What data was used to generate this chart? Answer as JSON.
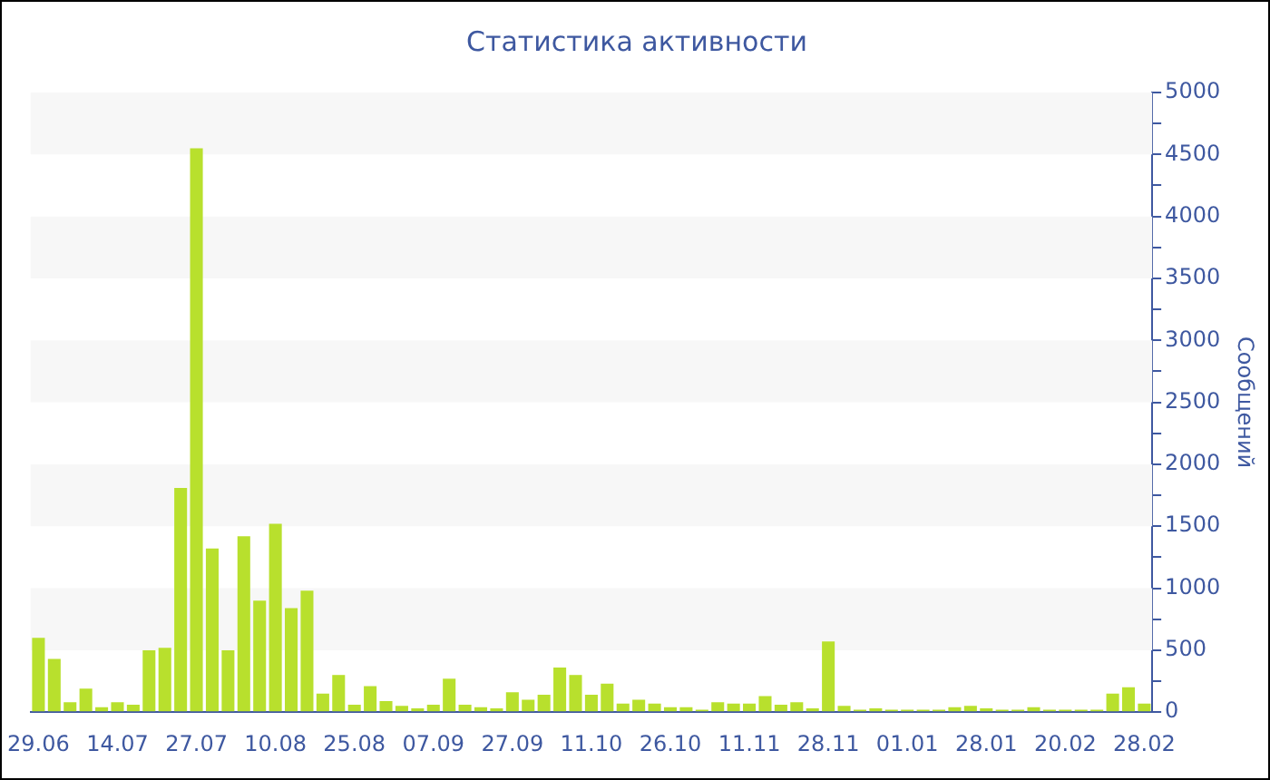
{
  "chart_data": {
    "type": "bar",
    "title": "Статистика активности",
    "ylabel": "Сообщений",
    "categories": [
      "29.06",
      null,
      null,
      null,
      null,
      "14.07",
      null,
      null,
      null,
      null,
      "27.07",
      null,
      null,
      null,
      null,
      "10.08",
      null,
      null,
      null,
      null,
      "25.08",
      null,
      null,
      null,
      null,
      "07.09",
      null,
      null,
      null,
      null,
      "27.09",
      null,
      null,
      null,
      null,
      "11.10",
      null,
      null,
      null,
      null,
      "26.10",
      null,
      null,
      null,
      null,
      "11.11",
      null,
      null,
      null,
      null,
      "28.11",
      null,
      null,
      null,
      null,
      "01.01",
      null,
      null,
      null,
      null,
      "28.01",
      null,
      null,
      null,
      null,
      "20.02",
      null,
      null,
      null,
      null,
      "28.02"
    ],
    "values": [
      600,
      430,
      80,
      190,
      40,
      80,
      60,
      500,
      520,
      1810,
      4550,
      1320,
      500,
      1420,
      900,
      1520,
      840,
      980,
      150,
      300,
      60,
      210,
      90,
      50,
      30,
      60,
      270,
      60,
      40,
      30,
      160,
      100,
      140,
      360,
      300,
      140,
      230,
      70,
      100,
      70,
      40,
      40,
      20,
      80,
      70,
      70,
      130,
      60,
      80,
      30,
      570,
      50,
      20,
      30,
      20,
      20,
      20,
      20,
      40,
      50,
      30,
      20,
      20,
      40,
      20,
      20,
      20,
      20,
      150,
      200,
      70
    ],
    "color": "#b8e02d",
    "ylim": [
      0,
      5000
    ],
    "yticks": [
      0,
      {
        "value": 250,
        "label": null
      },
      500,
      {
        "value": 750,
        "label": null
      },
      1000,
      {
        "value": 1250,
        "label": null
      },
      1500,
      {
        "value": 1750,
        "label": null
      },
      2000,
      {
        "value": 2250,
        "label": null
      },
      2500,
      {
        "value": 2750,
        "label": null
      },
      3000,
      {
        "value": 3250,
        "label": null
      },
      3500,
      {
        "value": 3750,
        "label": null
      },
      4000,
      {
        "value": 4250,
        "label": null
      },
      4500,
      {
        "value": 4750,
        "label": null
      },
      5000
    ],
    "bands": [
      {
        "axis": "y",
        "from": 500,
        "to": 1000,
        "color": "#f7f7f7"
      },
      {
        "axis": "y",
        "from": 1500,
        "to": 2000,
        "color": "#f7f7f7"
      },
      {
        "axis": "y",
        "from": 2500,
        "to": 3000,
        "color": "#f7f7f7"
      },
      {
        "axis": "y",
        "from": 3500,
        "to": 4000,
        "color": "#f7f7f7"
      },
      {
        "axis": "y",
        "from": 4500,
        "to": 5000,
        "color": "#f7f7f7"
      }
    ],
    "legend": false
  }
}
